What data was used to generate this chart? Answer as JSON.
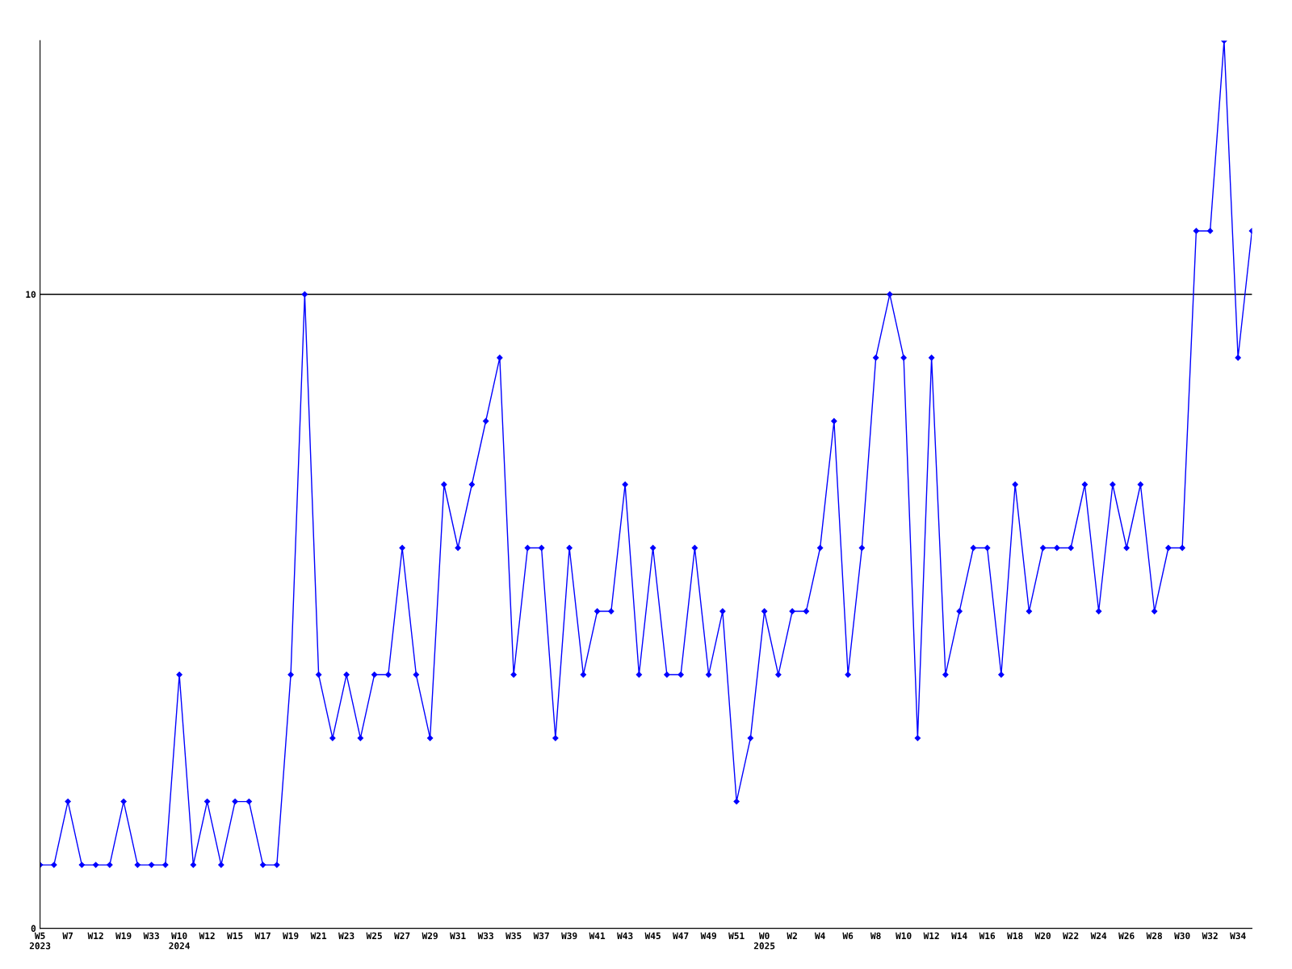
{
  "chart_data": {
    "type": "line",
    "categories": [
      "W5\n2023",
      null,
      "W7",
      null,
      "W12",
      null,
      "W19",
      null,
      "W33",
      null,
      "W10\n2024",
      null,
      "W12",
      null,
      "W15",
      null,
      "W17",
      null,
      "W19",
      null,
      "W21",
      null,
      "W23",
      null,
      "W25",
      null,
      "W27",
      null,
      "W29",
      null,
      "W31",
      null,
      "W33",
      null,
      "W35",
      null,
      "W37",
      null,
      "W39",
      null,
      "W41",
      null,
      "W43",
      null,
      "W45",
      null,
      "W47",
      null,
      "W49",
      null,
      "W51",
      null,
      "W0\n2025",
      null,
      "W2",
      null,
      "W4",
      null,
      "W6",
      null,
      "W8",
      null,
      "W10",
      null,
      "W12",
      null,
      "W14",
      null,
      "W16",
      null,
      "W18",
      null,
      "W20",
      null,
      "W22",
      null,
      "W24",
      null,
      "W26",
      null,
      "W28",
      null,
      "W30",
      null,
      "W32",
      null,
      "W34",
      null
    ],
    "series": [
      {
        "color": "#0000ff",
        "values": [
          1,
          1,
          2,
          1,
          1,
          1,
          2,
          1,
          1,
          1,
          4,
          1,
          2,
          1,
          2,
          2,
          1,
          1,
          4,
          10,
          4,
          3,
          4,
          3,
          4,
          4,
          6,
          4,
          3,
          7,
          6,
          7,
          8,
          9,
          4,
          6,
          6,
          3,
          6,
          4,
          5,
          5,
          7,
          4,
          6,
          4,
          4,
          6,
          4,
          5,
          2,
          3,
          5,
          4,
          5,
          5,
          6,
          8,
          4,
          6,
          9,
          10,
          9,
          3,
          9,
          4,
          5,
          6,
          6,
          4,
          7,
          5,
          6,
          6,
          6,
          7,
          5,
          7,
          6,
          7,
          5,
          6,
          6,
          11,
          11,
          14,
          9,
          11
        ]
      }
    ],
    "ylim": [
      0,
      14
    ],
    "yticks": [
      0,
      10
    ],
    "grid": "y",
    "marker": "diamond",
    "line_style": "solid"
  }
}
